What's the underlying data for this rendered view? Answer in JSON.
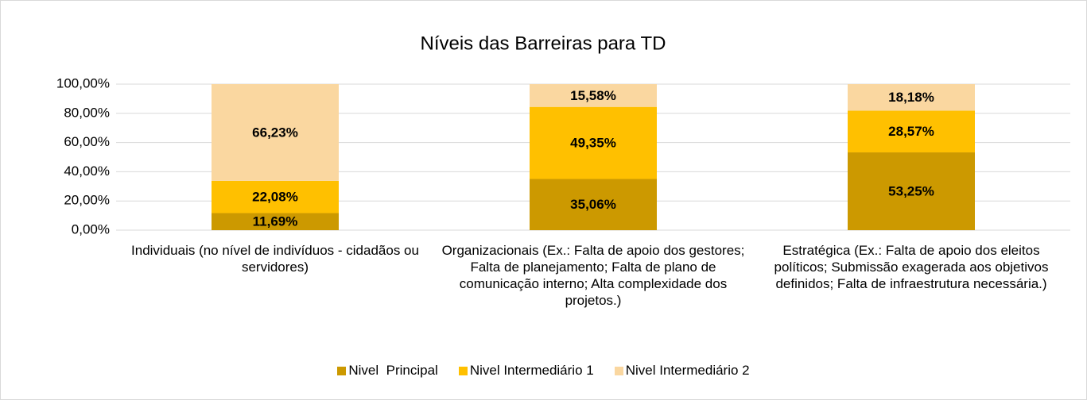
{
  "chart_data": {
    "type": "bar",
    "stacked": true,
    "title": "Níveis das Barreiras para TD",
    "categories": [
      "Individuais (no nível de indivíduos - cidadãos ou servidores)",
      "Organizacionais (Ex.: Falta de apoio dos gestores; Falta de planejamento; Falta de plano de comunicação interno; Alta complexidade dos projetos.)",
      "Estratégica (Ex.: Falta de apoio dos eleitos políticos; Submissão exagerada aos objetivos definidos; Falta de infraestrutura necessária.)"
    ],
    "series": [
      {
        "name": "Nivel  Principal",
        "color": "#cc9900",
        "values": [
          11.69,
          35.06,
          53.25
        ],
        "value_labels": [
          "11,69%",
          "35,06%",
          "53,25%"
        ]
      },
      {
        "name": "Nivel Intermediário 1",
        "color": "#ffc000",
        "values": [
          22.08,
          49.35,
          28.57
        ],
        "value_labels": [
          "22,08%",
          "49,35%",
          "28,57%"
        ]
      },
      {
        "name": "Nivel Intermediário 2",
        "color": "#fad7a0",
        "values": [
          66.23,
          15.58,
          18.18
        ],
        "value_labels": [
          "66,23%",
          "15,58%",
          "18,18%"
        ]
      }
    ],
    "ylim": [
      0,
      100
    ],
    "yticks": [
      {
        "value": 0,
        "label": "0,00%"
      },
      {
        "value": 20,
        "label": "20,00%"
      },
      {
        "value": 40,
        "label": "40,00%"
      },
      {
        "value": 60,
        "label": "60,00%"
      },
      {
        "value": 80,
        "label": "80,00%"
      },
      {
        "value": 100,
        "label": "100,00%"
      }
    ],
    "grid": true,
    "legend": "bottom"
  }
}
